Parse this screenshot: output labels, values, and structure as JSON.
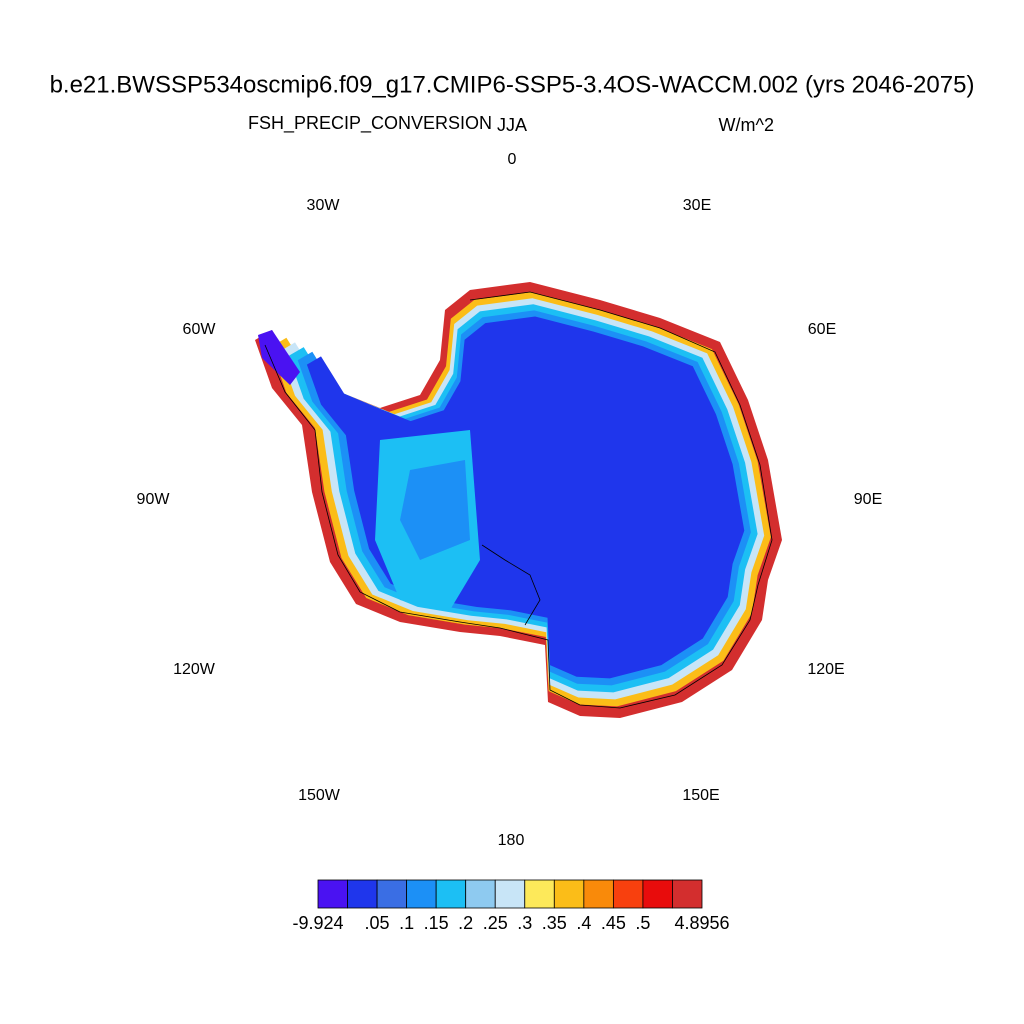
{
  "header": {
    "title": "b.e21.BWSSP534oscmip6.f09_g17.CMIP6-SSP5-3.4OS-WACCM.002 (yrs 2046-2075)",
    "left": "FSH_PRECIP_CONVERSION",
    "center": "JJA",
    "right": "W/m^2"
  },
  "map": {
    "longitude_labels": [
      "0",
      "30E",
      "60E",
      "90E",
      "120E",
      "150E",
      "180",
      "150W",
      "120W",
      "90W",
      "60W",
      "30W"
    ]
  },
  "colorbar": {
    "colors": [
      "#4a12f2",
      "#1f36ec",
      "#3a6ee4",
      "#1c90f6",
      "#1cbff4",
      "#8ecaf0",
      "#c8e5f7",
      "#fde95a",
      "#fbbd18",
      "#f98a0a",
      "#f8400e",
      "#e80c0c",
      "#d32e2e"
    ],
    "labels": [
      "-9.924",
      null,
      ".05",
      ".1",
      ".15",
      ".2",
      ".25",
      ".3",
      ".35",
      ".4",
      ".45",
      ".5",
      "4.8956"
    ]
  }
}
